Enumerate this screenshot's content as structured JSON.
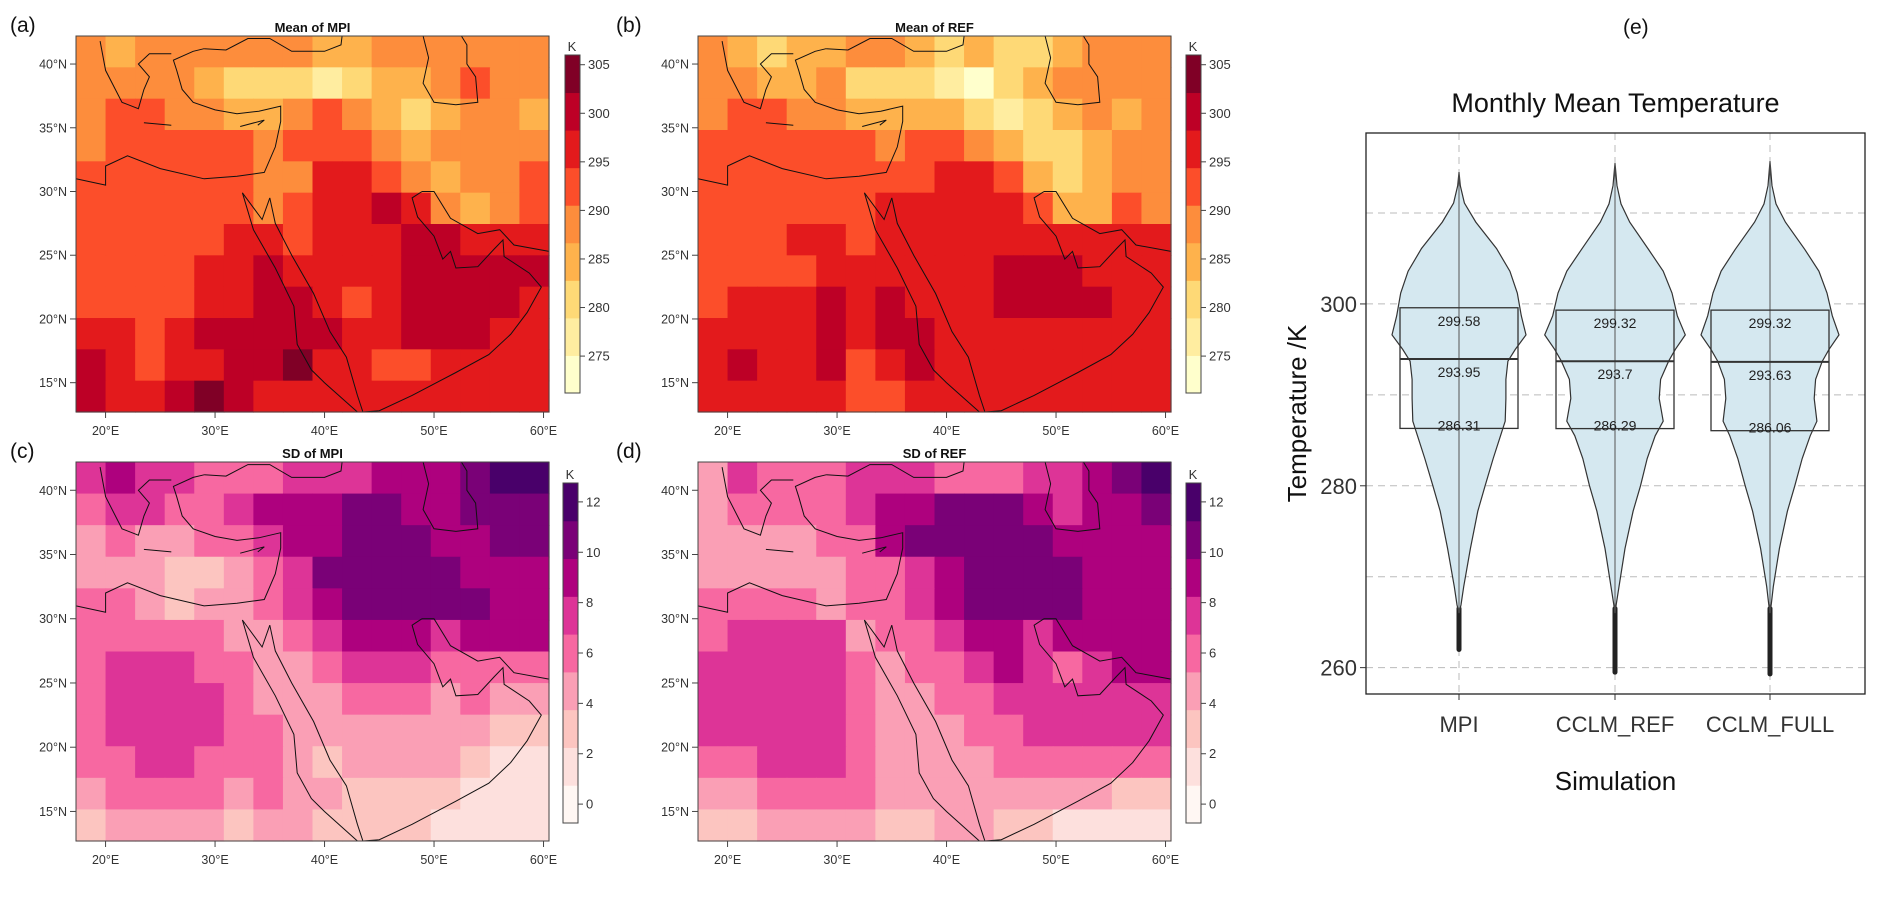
{
  "chart_data": [
    {
      "type": "heatmap",
      "panel_label": "(a)",
      "title": "Mean of MPI",
      "colorbar_label": "K",
      "colorbar_ticks": [
        "305",
        "300",
        "295",
        "290",
        "285",
        "280",
        "275"
      ],
      "colorbar_tick_values": [
        305,
        300,
        295,
        290,
        285,
        280,
        275
      ],
      "colorbar_range": [
        271.2,
        306
      ],
      "colors": [
        "#FFFFCC",
        "#FFEDA0",
        "#FED976",
        "#FEB24C",
        "#FD8D3C",
        "#FC4E2A",
        "#E31A1C",
        "#BD0026",
        "#800026"
      ],
      "lat_range": [
        12.7,
        42.2
      ],
      "lon_range": [
        17.3,
        60.5
      ],
      "y_ticks": [
        40,
        35,
        30,
        25,
        20,
        15
      ],
      "y_tick_labels": [
        "40°N",
        "35°N",
        "30°N",
        "25°N",
        "20°N",
        "15°N"
      ],
      "x_ticks": [
        20,
        30,
        40,
        50,
        60
      ],
      "x_tick_labels": [
        "20°E",
        "30°E",
        "40°E",
        "50°E",
        "60°E"
      ],
      "grid_classes": [
        "4344444433444444",
        "4444322212334544",
        "4554433454323443",
        "4555554555434444",
        "5555554466543445",
        "5555554566764345",
        "5555566566677666",
        "5555667666677777",
        "5555667765677776",
        "6656777776677766",
        "7656677866556666",
        "7667876666666666"
      ]
    },
    {
      "type": "heatmap",
      "panel_label": "(b)",
      "title": "Mean of REF",
      "colorbar_label": "K",
      "colorbar_ticks": [
        "305",
        "300",
        "295",
        "290",
        "285",
        "280",
        "275"
      ],
      "colorbar_tick_values": [
        305,
        300,
        295,
        290,
        285,
        280,
        275
      ],
      "colorbar_range": [
        271.2,
        306
      ],
      "colors": [
        "#FFFFCC",
        "#FFEDA0",
        "#FED976",
        "#FEB24C",
        "#FD8D3C",
        "#FC4E2A",
        "#E31A1C",
        "#BD0026",
        "#800026"
      ],
      "lat_range": [
        12.7,
        42.2
      ],
      "lon_range": [
        17.3,
        60.5
      ],
      "y_ticks": [
        40,
        35,
        30,
        25,
        20,
        15
      ],
      "y_tick_labels": [
        "40°N",
        "35°N",
        "30°N",
        "25°N",
        "20°N",
        "15°N"
      ],
      "x_ticks": [
        20,
        30,
        40,
        50,
        60
      ],
      "x_tick_labels": [
        "20°E",
        "30°E",
        "40°E",
        "50°E",
        "60°E"
      ],
      "grid_classes": [
        "4323344323223444",
        "4433422210234444",
        "4554433332123434",
        "5555554554322344",
        "5555555566532344",
        "5555556666653354",
        "5556656666666666",
        "5555666666777666",
        "5666767666777766",
        "6666767766666666",
        "6766756766666666",
        "6666655666666666"
      ]
    },
    {
      "type": "heatmap",
      "panel_label": "(c)",
      "title": "SD of MPI",
      "colorbar_label": "K",
      "colorbar_ticks": [
        "12",
        "10",
        "8",
        "6",
        "4",
        "2",
        "0"
      ],
      "colorbar_tick_values": [
        12,
        10,
        8,
        6,
        4,
        2,
        0
      ],
      "colorbar_range": [
        -0.75,
        12.75
      ],
      "colors": [
        "#FFF7F3",
        "#FDE0DD",
        "#FCC5C0",
        "#FA9FB5",
        "#F768A1",
        "#DD3497",
        "#AE017E",
        "#7A0177",
        "#49006A"
      ],
      "lat_range": [
        12.7,
        42.2
      ],
      "lon_range": [
        17.3,
        60.5
      ],
      "y_ticks": [
        40,
        35,
        30,
        25,
        20,
        15
      ],
      "y_tick_labels": [
        "40°N",
        "35°N",
        "30°N",
        "25°N",
        "20°N",
        "15°N"
      ],
      "x_ticks": [
        20,
        30,
        40,
        50,
        60
      ],
      "x_tick_labels": [
        "20°E",
        "30°E",
        "40°E",
        "50°E",
        "60°E"
      ],
      "grid_classes": [
        "5655444555666788",
        "4554456667766777",
        "3433445667776677",
        "3332234577777666",
        "4432334567777766",
        "4444433456665666",
        "4555443345554444",
        "4555543334443433",
        "4555544333333322",
        "4455444323333211",
        "3444434332222111",
        "2333323322221111"
      ]
    },
    {
      "type": "heatmap",
      "panel_label": "(d)",
      "title": "SD of REF",
      "colorbar_label": "K",
      "colorbar_ticks": [
        "12",
        "10",
        "8",
        "6",
        "4",
        "2",
        "0"
      ],
      "colorbar_tick_values": [
        12,
        10,
        8,
        6,
        4,
        2,
        0
      ],
      "colorbar_range": [
        -0.75,
        12.75
      ],
      "colors": [
        "#FFF7F3",
        "#FDE0DD",
        "#FCC5C0",
        "#FA9FB5",
        "#F768A1",
        "#DD3497",
        "#AE017E",
        "#7A0177",
        "#49006A"
      ],
      "lat_range": [
        12.7,
        42.2
      ],
      "lon_range": [
        17.3,
        60.5
      ],
      "y_ticks": [
        40,
        35,
        30,
        25,
        20,
        15
      ],
      "y_tick_labels": [
        "40°N",
        "35°N",
        "30°N",
        "25°N",
        "20°N",
        "15°N"
      ],
      "x_ticks": [
        20,
        30,
        40,
        50,
        60
      ],
      "x_tick_labels": [
        "20°E",
        "30°E",
        "40°E",
        "50°E",
        "60°E"
      ],
      "grid_classes": [
        "3544455544455678",
        "3444456677765667",
        "3333446777776666",
        "3333344567777666",
        "4444344567777666",
        "4555534456656666",
        "5555543445654566",
        "5555543344555555",
        "5555543334455555",
        "4455543333444444",
        "3344443333333322",
        "2233332233221111"
      ]
    },
    {
      "type": "violin",
      "panel_label": "(e)",
      "title": "Monthly Mean Temperature",
      "xlabel": "Simulation",
      "ylabel": "Temperature /K",
      "categories": [
        "MPI",
        "CCLM_REF",
        "CCLM_FULL"
      ],
      "ylim": [
        257.1,
        318.8
      ],
      "y_ticks": [
        260,
        280,
        300
      ],
      "y_tick_labels": [
        "260",
        "280",
        "300"
      ],
      "grid_y": [
        260,
        270,
        280,
        290,
        300,
        310
      ],
      "fill": "#D5E8F0",
      "series": [
        {
          "name": "MPI",
          "q1": 286.31,
          "median": 293.95,
          "q3": 299.58,
          "q1_label": "286.31",
          "median_label": "293.95",
          "q3_label": "299.58",
          "tail_min": 262,
          "density": [
            [
              314.5,
              0
            ],
            [
              313,
              0.02
            ],
            [
              311.1,
              0.08
            ],
            [
              309,
              0.25
            ],
            [
              306.1,
              0.56
            ],
            [
              303.6,
              0.76
            ],
            [
              301.2,
              0.87
            ],
            [
              298.7,
              0.93
            ],
            [
              296.6,
              1.0
            ],
            [
              295,
              0.84
            ],
            [
              293.7,
              0.73
            ],
            [
              291.7,
              0.7
            ],
            [
              289.6,
              0.7
            ],
            [
              287.1,
              0.69
            ],
            [
              285.5,
              0.62
            ],
            [
              283,
              0.51
            ],
            [
              280,
              0.39
            ],
            [
              277.2,
              0.28
            ],
            [
              273.1,
              0.17
            ],
            [
              268.9,
              0.07
            ],
            [
              266.9,
              0.03
            ],
            [
              266,
              0
            ]
          ]
        },
        {
          "name": "CCLM_REF",
          "q1": 286.29,
          "median": 293.7,
          "q3": 299.32,
          "q1_label": "286.29",
          "median_label": "293.7",
          "q3_label": "299.32",
          "tail_min": 259.5,
          "density": [
            [
              315.5,
              0
            ],
            [
              313,
              0.03
            ],
            [
              311,
              0.09
            ],
            [
              309,
              0.22
            ],
            [
              306,
              0.5
            ],
            [
              303.6,
              0.72
            ],
            [
              301.2,
              0.85
            ],
            [
              298.7,
              0.93
            ],
            [
              296.6,
              1.05
            ],
            [
              295,
              0.9
            ],
            [
              293.7,
              0.8
            ],
            [
              291.7,
              0.68
            ],
            [
              289.6,
              0.66
            ],
            [
              287.1,
              0.72
            ],
            [
              285.5,
              0.6
            ],
            [
              283,
              0.48
            ],
            [
              280,
              0.38
            ],
            [
              277.2,
              0.27
            ],
            [
              273.1,
              0.15
            ],
            [
              268.9,
              0.06
            ],
            [
              267,
              0.02
            ],
            [
              266,
              0
            ]
          ]
        },
        {
          "name": "CCLM_FULL",
          "q1": 286.06,
          "median": 293.63,
          "q3": 299.32,
          "q1_label": "286.06",
          "median_label": "293.63",
          "q3_label": "299.32",
          "tail_min": 259.3,
          "density": [
            [
              315.7,
              0
            ],
            [
              313,
              0.03
            ],
            [
              311,
              0.09
            ],
            [
              309,
              0.23
            ],
            [
              306,
              0.52
            ],
            [
              303.6,
              0.73
            ],
            [
              301.2,
              0.85
            ],
            [
              298.7,
              0.93
            ],
            [
              296.6,
              1.03
            ],
            [
              295,
              0.88
            ],
            [
              293.7,
              0.78
            ],
            [
              291.7,
              0.68
            ],
            [
              289.6,
              0.66
            ],
            [
              287.1,
              0.7
            ],
            [
              285.5,
              0.6
            ],
            [
              283,
              0.48
            ],
            [
              280,
              0.37
            ],
            [
              277.2,
              0.26
            ],
            [
              273.1,
              0.14
            ],
            [
              268.9,
              0.05
            ],
            [
              267,
              0.02
            ],
            [
              266,
              0
            ]
          ]
        }
      ]
    }
  ]
}
